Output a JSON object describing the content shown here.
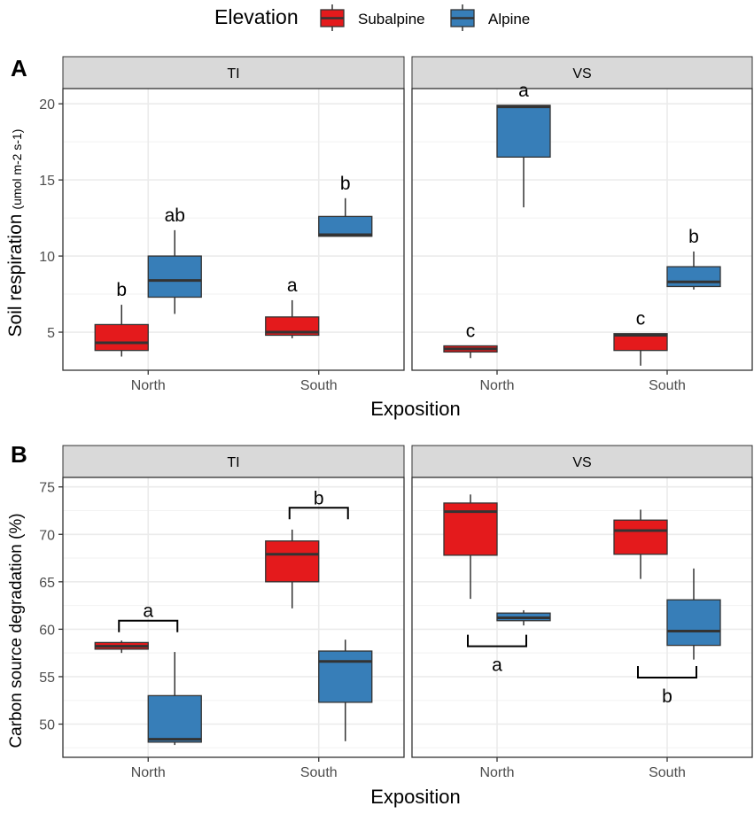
{
  "legend": {
    "title": "Elevation",
    "items": [
      {
        "label": "Subalpine",
        "color": "#E41A1C"
      },
      {
        "label": "Alpine",
        "color": "#377EB8"
      }
    ]
  },
  "chart_data": [
    {
      "panel_label": "A",
      "type": "boxplot",
      "xlabel": "Exposition",
      "ylabel": "Soil respiration",
      "ylabel_units": "(umol m-2 s-1)",
      "categories": [
        "North",
        "South"
      ],
      "ylim": [
        2.5,
        21
      ],
      "yticks": [
        5,
        10,
        15,
        20
      ],
      "facets": [
        {
          "title": "TI",
          "boxes": [
            {
              "x": "North",
              "group": "Subalpine",
              "min": 3.4,
              "q1": 3.8,
              "median": 4.3,
              "q3": 5.5,
              "max": 6.8,
              "label": "b"
            },
            {
              "x": "North",
              "group": "Alpine",
              "min": 6.2,
              "q1": 7.3,
              "median": 8.4,
              "q3": 10.0,
              "max": 11.7,
              "label": "ab"
            },
            {
              "x": "South",
              "group": "Subalpine",
              "min": 4.6,
              "q1": 4.8,
              "median": 5.0,
              "q3": 6.0,
              "max": 7.1,
              "label": "a"
            },
            {
              "x": "South",
              "group": "Alpine",
              "min": 11.3,
              "q1": 11.3,
              "median": 11.4,
              "q3": 12.6,
              "max": 13.8,
              "label": "b"
            }
          ]
        },
        {
          "title": "VS",
          "boxes": [
            {
              "x": "North",
              "group": "Subalpine",
              "min": 3.3,
              "q1": 3.7,
              "median": 3.9,
              "q3": 4.1,
              "max": 4.1,
              "label": "c"
            },
            {
              "x": "North",
              "group": "Alpine",
              "min": 13.2,
              "q1": 16.5,
              "median": 19.8,
              "q3": 19.9,
              "max": 19.9,
              "label": "a"
            },
            {
              "x": "South",
              "group": "Subalpine",
              "min": 2.8,
              "q1": 3.8,
              "median": 4.8,
              "q3": 4.9,
              "max": 4.9,
              "label": "c"
            },
            {
              "x": "South",
              "group": "Alpine",
              "min": 7.8,
              "q1": 8.0,
              "median": 8.3,
              "q3": 9.3,
              "max": 10.3,
              "label": "b"
            }
          ]
        }
      ]
    },
    {
      "panel_label": "B",
      "type": "boxplot",
      "xlabel": "Exposition",
      "ylabel": "Carbon source degradation (%)",
      "categories": [
        "North",
        "South"
      ],
      "ylim": [
        46.5,
        76
      ],
      "yticks": [
        50,
        55,
        60,
        65,
        70,
        75
      ],
      "facets": [
        {
          "title": "TI",
          "boxes": [
            {
              "x": "North",
              "group": "Subalpine",
              "min": 57.5,
              "q1": 57.9,
              "median": 58.2,
              "q3": 58.6,
              "max": 58.8
            },
            {
              "x": "North",
              "group": "Alpine",
              "min": 47.8,
              "q1": 48.1,
              "median": 48.4,
              "q3": 53.0,
              "max": 57.6
            },
            {
              "x": "South",
              "group": "Subalpine",
              "min": 62.2,
              "q1": 65.0,
              "median": 67.9,
              "q3": 69.3,
              "max": 70.5
            },
            {
              "x": "South",
              "group": "Alpine",
              "min": 48.2,
              "q1": 52.3,
              "median": 56.6,
              "q3": 57.7,
              "max": 58.9
            }
          ],
          "brackets": [
            {
              "x": "North",
              "value": 60.9,
              "direction": "up",
              "label": "a"
            },
            {
              "x": "South",
              "value": 72.8,
              "direction": "up",
              "label": "b"
            }
          ]
        },
        {
          "title": "VS",
          "boxes": [
            {
              "x": "North",
              "group": "Subalpine",
              "min": 63.2,
              "q1": 67.8,
              "median": 72.4,
              "q3": 73.3,
              "max": 74.2
            },
            {
              "x": "North",
              "group": "Alpine",
              "min": 60.4,
              "q1": 60.9,
              "median": 61.2,
              "q3": 61.7,
              "max": 62.0
            },
            {
              "x": "South",
              "group": "Subalpine",
              "min": 65.3,
              "q1": 67.9,
              "median": 70.4,
              "q3": 71.5,
              "max": 72.6
            },
            {
              "x": "South",
              "group": "Alpine",
              "min": 56.8,
              "q1": 58.3,
              "median": 59.8,
              "q3": 63.1,
              "max": 66.4
            }
          ],
          "brackets": [
            {
              "x": "North",
              "value": 58.2,
              "direction": "down",
              "label": "a"
            },
            {
              "x": "South",
              "value": 54.9,
              "direction": "down",
              "label": "b"
            }
          ]
        }
      ]
    }
  ]
}
